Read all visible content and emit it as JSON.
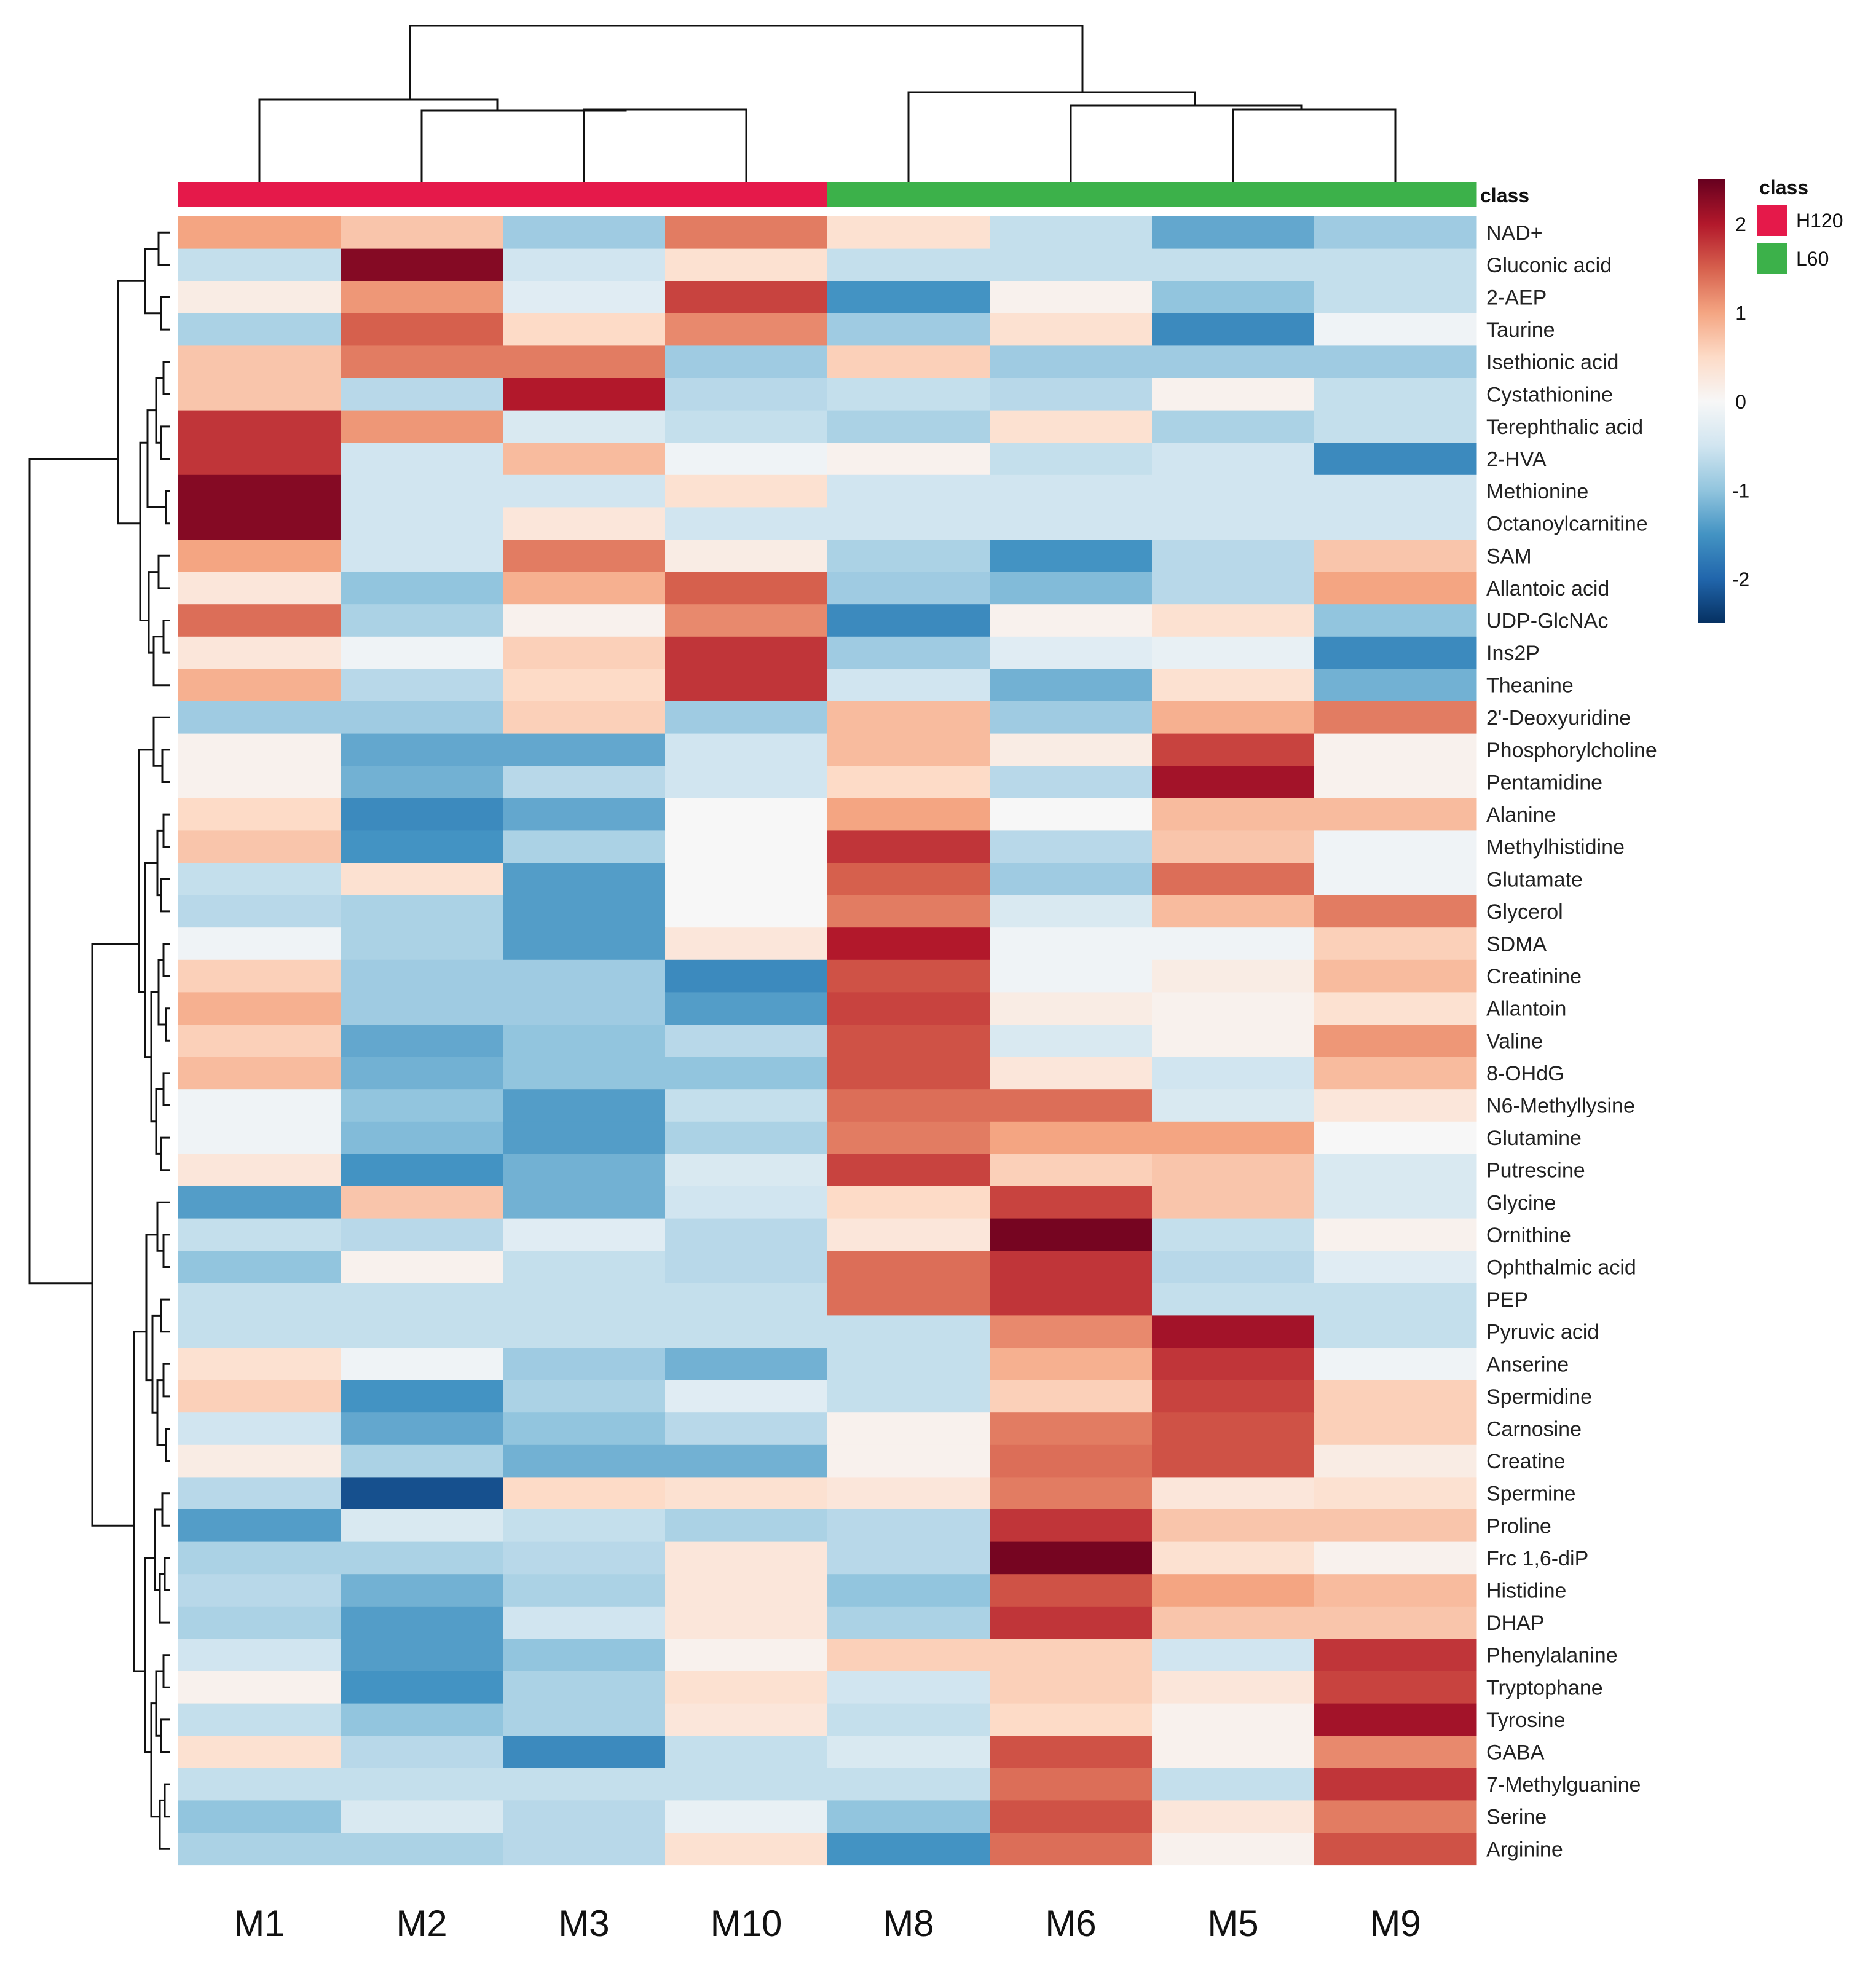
{
  "chart_data": {
    "type": "heatmap",
    "title": "",
    "columns": [
      "M1",
      "M2",
      "M3",
      "M10",
      "M8",
      "M6",
      "M5",
      "M9"
    ],
    "column_class": [
      "H120",
      "H120",
      "H120",
      "H120",
      "L60",
      "L60",
      "L60",
      "L60"
    ],
    "class_label": "class",
    "rows": [
      "NAD+",
      "Gluconic acid",
      "2-AEP",
      "Taurine",
      "Isethionic acid",
      "Cystathionine",
      "Terephthalic acid",
      "2-HVA",
      "Methionine",
      "Octanoylcarnitine",
      "SAM",
      "Allantoic acid",
      "UDP-GlcNAc",
      "Ins2P",
      "Theanine",
      "2'-Deoxyuridine",
      "Phosphorylcholine",
      "Pentamidine",
      "Alanine",
      "Methylhistidine",
      "Glutamate",
      "Glycerol",
      "SDMA",
      "Creatinine",
      "Allantoin",
      "Valine",
      "8-OHdG",
      "N6-Methyllysine",
      "Glutamine",
      "Putrescine",
      "Glycine",
      "Ornithine",
      "Ophthalmic acid",
      "PEP",
      "Pyruvic acid",
      "Anserine",
      "Spermidine",
      "Carnosine",
      "Creatine",
      "Spermine",
      "Proline",
      "Frc 1,6-diP",
      "Histidine",
      "DHAP",
      "Phenylalanine",
      "Tryptophane",
      "Tyrosine",
      "GABA",
      "7-Methylguanine",
      "Serine",
      "Arginine"
    ],
    "values": [
      [
        1.0,
        0.7,
        -0.9,
        1.3,
        0.4,
        -0.6,
        -1.3,
        -0.9
      ],
      [
        -0.6,
        2.3,
        -0.5,
        0.4,
        -0.6,
        -0.6,
        -0.6,
        -0.6
      ],
      [
        0.2,
        1.1,
        -0.3,
        1.7,
        -1.5,
        0.1,
        -1.0,
        -0.6
      ],
      [
        -0.8,
        1.5,
        0.5,
        1.2,
        -0.9,
        0.4,
        -1.6,
        -0.1
      ],
      [
        0.7,
        1.3,
        1.3,
        -0.9,
        0.6,
        -0.9,
        -0.9,
        -0.9
      ],
      [
        0.7,
        -0.7,
        2.0,
        -0.7,
        -0.6,
        -0.7,
        0.1,
        -0.6
      ],
      [
        1.8,
        1.1,
        -0.4,
        -0.6,
        -0.8,
        0.4,
        -0.8,
        -0.6
      ],
      [
        1.8,
        -0.5,
        0.8,
        -0.1,
        0.1,
        -0.6,
        -0.5,
        -1.6
      ],
      [
        2.3,
        -0.5,
        -0.5,
        0.4,
        -0.5,
        -0.5,
        -0.5,
        -0.5
      ],
      [
        2.3,
        -0.5,
        0.3,
        -0.5,
        -0.5,
        -0.5,
        -0.5,
        -0.5
      ],
      [
        1.0,
        -0.5,
        1.3,
        0.2,
        -0.8,
        -1.5,
        -0.7,
        0.7
      ],
      [
        0.3,
        -1.0,
        0.9,
        1.5,
        -0.9,
        -1.1,
        -0.7,
        1.0
      ],
      [
        1.4,
        -0.8,
        0.1,
        1.2,
        -1.6,
        0.1,
        0.4,
        -1.0
      ],
      [
        0.3,
        -0.1,
        0.6,
        1.8,
        -0.9,
        -0.3,
        -0.2,
        -1.6
      ],
      [
        0.9,
        -0.7,
        0.5,
        1.8,
        -0.5,
        -1.2,
        0.4,
        -1.2
      ],
      [
        -0.9,
        -0.9,
        0.6,
        -0.9,
        0.8,
        -0.9,
        0.9,
        1.3
      ],
      [
        0.1,
        -1.3,
        -1.3,
        -0.5,
        0.8,
        0.2,
        1.7,
        0.1
      ],
      [
        0.1,
        -1.2,
        -0.7,
        -0.5,
        0.5,
        -0.7,
        2.1,
        0.1
      ],
      [
        0.5,
        -1.6,
        -1.3,
        0.0,
        1.0,
        0.0,
        0.8,
        0.8
      ],
      [
        0.7,
        -1.5,
        -0.8,
        0.0,
        1.8,
        -0.7,
        0.7,
        -0.1
      ],
      [
        -0.6,
        0.4,
        -1.4,
        0.0,
        1.5,
        -0.9,
        1.4,
        -0.1
      ],
      [
        -0.7,
        -0.8,
        -1.4,
        0.0,
        1.3,
        -0.4,
        0.8,
        1.3
      ],
      [
        -0.1,
        -0.8,
        -1.4,
        0.3,
        2.0,
        -0.1,
        -0.1,
        0.6
      ],
      [
        0.6,
        -0.9,
        -0.9,
        -1.6,
        1.6,
        -0.1,
        0.2,
        0.8
      ],
      [
        0.9,
        -0.9,
        -0.9,
        -1.4,
        1.7,
        0.2,
        0.1,
        0.4
      ],
      [
        0.6,
        -1.3,
        -1.0,
        -0.7,
        1.6,
        -0.4,
        0.1,
        1.1
      ],
      [
        0.8,
        -1.2,
        -1.0,
        -1.0,
        1.6,
        0.3,
        -0.5,
        0.8
      ],
      [
        -0.1,
        -1.0,
        -1.4,
        -0.6,
        1.4,
        1.4,
        -0.4,
        0.3
      ],
      [
        -0.1,
        -1.1,
        -1.4,
        -0.8,
        1.3,
        1.0,
        1.0,
        0.0
      ],
      [
        0.3,
        -1.5,
        -1.2,
        -0.4,
        1.7,
        0.6,
        0.7,
        -0.4
      ],
      [
        -1.4,
        0.7,
        -1.2,
        -0.5,
        0.5,
        1.7,
        0.7,
        -0.4
      ],
      [
        -0.6,
        -0.7,
        -0.3,
        -0.7,
        0.3,
        2.4,
        -0.6,
        0.1
      ],
      [
        -1.0,
        0.1,
        -0.6,
        -0.7,
        1.4,
        1.8,
        -0.7,
        -0.3
      ],
      [
        -0.6,
        -0.6,
        -0.6,
        -0.6,
        1.4,
        1.8,
        -0.6,
        -0.6
      ],
      [
        -0.6,
        -0.6,
        -0.6,
        -0.6,
        -0.6,
        1.2,
        2.1,
        -0.6
      ],
      [
        0.4,
        -0.1,
        -0.9,
        -1.2,
        -0.6,
        0.9,
        1.8,
        -0.1
      ],
      [
        0.6,
        -1.5,
        -0.8,
        -0.3,
        -0.6,
        0.6,
        1.7,
        0.6
      ],
      [
        -0.5,
        -1.3,
        -1.0,
        -0.7,
        0.1,
        1.3,
        1.6,
        0.6
      ],
      [
        0.2,
        -0.8,
        -1.2,
        -1.2,
        0.1,
        1.4,
        1.6,
        0.2
      ],
      [
        -0.7,
        -2.2,
        0.5,
        0.4,
        0.3,
        1.3,
        0.3,
        0.4
      ],
      [
        -1.4,
        -0.4,
        -0.6,
        -0.8,
        -0.7,
        1.8,
        0.7,
        0.7
      ],
      [
        -0.8,
        -0.8,
        -0.7,
        0.3,
        -0.7,
        2.4,
        0.4,
        0.1
      ],
      [
        -0.7,
        -1.2,
        -0.8,
        0.3,
        -1.0,
        1.6,
        1.0,
        0.8
      ],
      [
        -0.8,
        -1.4,
        -0.5,
        0.3,
        -0.8,
        1.8,
        0.7,
        0.7
      ],
      [
        -0.5,
        -1.4,
        -1.0,
        0.1,
        0.6,
        0.6,
        -0.5,
        1.8
      ],
      [
        0.1,
        -1.5,
        -0.8,
        0.4,
        -0.5,
        0.6,
        0.3,
        1.7
      ],
      [
        -0.6,
        -1.0,
        -0.8,
        0.3,
        -0.6,
        0.5,
        0.1,
        2.1
      ],
      [
        0.4,
        -0.7,
        -1.6,
        -0.6,
        -0.4,
        1.6,
        0.1,
        1.2
      ],
      [
        -0.6,
        -0.6,
        -0.6,
        -0.6,
        -0.6,
        1.4,
        -0.6,
        1.8
      ],
      [
        -1.0,
        -0.4,
        -0.7,
        -0.2,
        -1.0,
        1.6,
        0.3,
        1.3
      ],
      [
        -0.8,
        -0.8,
        -0.7,
        0.4,
        -1.5,
        1.4,
        0.1,
        1.6
      ]
    ],
    "color_scale": {
      "min": -2.5,
      "max": 2.5,
      "ticks": [
        2,
        1,
        0,
        -1,
        -2
      ],
      "colors": [
        "#053061",
        "#2166ac",
        "#4393c3",
        "#92c5de",
        "#d1e5f0",
        "#f7f7f7",
        "#fddbc7",
        "#f4a582",
        "#d6604d",
        "#b2182b",
        "#67001f"
      ]
    },
    "legend": {
      "title": "class",
      "entries": [
        {
          "name": "H120",
          "color": "#e5194a"
        },
        {
          "name": "L60",
          "color": "#3cb14a"
        }
      ]
    }
  }
}
